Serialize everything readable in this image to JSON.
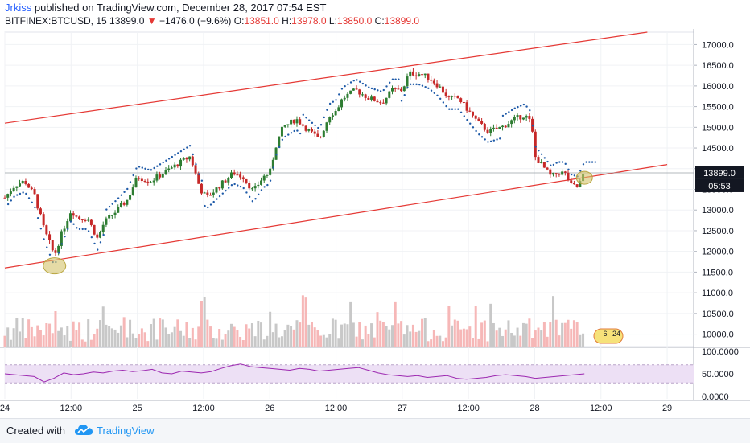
{
  "header": {
    "author": "Jrkiss",
    "published_text": "published on TradingView.com, December 28, 2017 07:54 EST",
    "symbol": "BITFINEX:BTCUSD, 15",
    "last": "13899.0",
    "change": "−1476.0 (−9.6%)",
    "o_label": "O:",
    "o_value": "13851.0",
    "h_label": "H:",
    "h_value": "13978.0",
    "l_label": "L:",
    "l_value": "13850.0",
    "c_label": "C:",
    "c_value": "13899.0"
  },
  "price_badge": "13899.0",
  "countdown_badge": "05:53",
  "event_badge": {
    "a": "6",
    "b": "24"
  },
  "footer": {
    "created_with": "Created with",
    "brand": "TradingView"
  },
  "colors": {
    "up": "#2e7d32",
    "down": "#c62828",
    "channel": "#e53935",
    "sar": "#1e5aa8",
    "rsi": "#9c27b0",
    "rsi_band": "#ede0f5",
    "volume_up": "#c8c8c8",
    "volume_down": "#f6b7b7",
    "accent": "#2196f3"
  },
  "chart_data": {
    "type": "candlestick",
    "x_ticks": [
      "24",
      "12:00",
      "25",
      "12:00",
      "26",
      "12:00",
      "27",
      "12:00",
      "28",
      "12:00",
      "29"
    ],
    "x_range": [
      0,
      10.4
    ],
    "y_ticks": [
      "17000.0",
      "16500.0",
      "16000.0",
      "15500.0",
      "15000.0",
      "14500.0",
      "14000.0",
      "13500.0",
      "13000.0",
      "12500.0",
      "12000.0",
      "11500.0",
      "11000.0",
      "10500.0",
      "10000.0"
    ],
    "y_range": [
      9700,
      17300
    ],
    "price_path": [
      [
        0.0,
        13300
      ],
      [
        0.15,
        13600
      ],
      [
        0.3,
        13700
      ],
      [
        0.45,
        13350
      ],
      [
        0.6,
        12500
      ],
      [
        0.75,
        11900
      ],
      [
        0.85,
        12400
      ],
      [
        1.0,
        13000
      ],
      [
        1.1,
        12800
      ],
      [
        1.25,
        12800
      ],
      [
        1.4,
        12300
      ],
      [
        1.5,
        12700
      ],
      [
        1.7,
        13000
      ],
      [
        1.85,
        13250
      ],
      [
        2.0,
        13800
      ],
      [
        2.2,
        13700
      ],
      [
        2.4,
        13900
      ],
      [
        2.6,
        14100
      ],
      [
        2.8,
        14300
      ],
      [
        2.95,
        13500
      ],
      [
        3.05,
        13300
      ],
      [
        3.25,
        13600
      ],
      [
        3.45,
        13900
      ],
      [
        3.6,
        13800
      ],
      [
        3.75,
        13450
      ],
      [
        3.9,
        13800
      ],
      [
        4.0,
        13900
      ],
      [
        4.1,
        14600
      ],
      [
        4.2,
        15000
      ],
      [
        4.4,
        15200
      ],
      [
        4.6,
        14900
      ],
      [
        4.75,
        14700
      ],
      [
        4.9,
        15300
      ],
      [
        5.0,
        15400
      ],
      [
        5.1,
        15700
      ],
      [
        5.3,
        15900
      ],
      [
        5.5,
        15700
      ],
      [
        5.7,
        15600
      ],
      [
        5.85,
        15900
      ],
      [
        6.0,
        15900
      ],
      [
        6.1,
        16300
      ],
      [
        6.25,
        16300
      ],
      [
        6.4,
        16200
      ],
      [
        6.55,
        16000
      ],
      [
        6.7,
        15700
      ],
      [
        6.85,
        15700
      ],
      [
        7.0,
        15400
      ],
      [
        7.15,
        15100
      ],
      [
        7.3,
        14900
      ],
      [
        7.5,
        15000
      ],
      [
        7.7,
        15200
      ],
      [
        7.85,
        15300
      ],
      [
        7.95,
        15100
      ],
      [
        8.0,
        14300
      ],
      [
        8.1,
        14100
      ],
      [
        8.25,
        13800
      ],
      [
        8.35,
        13900
      ],
      [
        8.45,
        13900
      ],
      [
        8.55,
        13600
      ],
      [
        8.65,
        13550
      ],
      [
        8.75,
        13899
      ]
    ],
    "channel_upper": {
      "x": [
        0.0,
        9.7
      ],
      "y": [
        15100,
        17300
      ]
    },
    "channel_lower": {
      "x": [
        0.0,
        10.0
      ],
      "y": [
        11600,
        14100
      ]
    },
    "last_price": 13899.0,
    "rsi": {
      "y_ticks": [
        "100.0000",
        "50.0000",
        "0.0000"
      ],
      "y_range": [
        0,
        100
      ],
      "band": [
        30,
        70
      ],
      "values": [
        50,
        48,
        46,
        44,
        32,
        40,
        52,
        48,
        50,
        54,
        52,
        56,
        58,
        55,
        57,
        60,
        52,
        50,
        56,
        54,
        52,
        55,
        62,
        68,
        72,
        66,
        64,
        62,
        60,
        58,
        62,
        60,
        56,
        58,
        60,
        62,
        64,
        58,
        52,
        48,
        46,
        44,
        46,
        42,
        44,
        46,
        40,
        38,
        40,
        42,
        46,
        48,
        46,
        44,
        40,
        42,
        44,
        46,
        48,
        50
      ]
    }
  }
}
